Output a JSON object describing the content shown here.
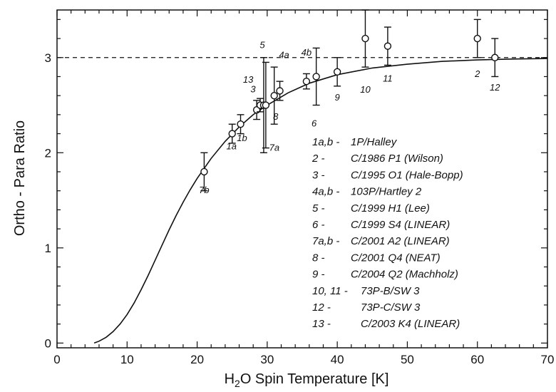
{
  "chart_data": {
    "type": "scatter",
    "title": "",
    "xlabel": {
      "prefix": "H",
      "sub": "2",
      "suffix": "O Spin Temperature [K]"
    },
    "ylabel": "Ortho - Para Ratio",
    "xlim": [
      0,
      70
    ],
    "ylim": [
      -0.05,
      3.5
    ],
    "xticks": [
      0,
      10,
      20,
      30,
      40,
      50,
      60,
      70
    ],
    "yticks": [
      0,
      1,
      2,
      3
    ],
    "reference_line": {
      "y": 3,
      "style": "dashed"
    },
    "model_curve": {
      "x": [
        5.3,
        6,
        7,
        8,
        9,
        10,
        11,
        12,
        13,
        14,
        15,
        16,
        17,
        18,
        19,
        20,
        22,
        24,
        26,
        28,
        30,
        33,
        36,
        40,
        45,
        50,
        55,
        60,
        65,
        70
      ],
      "y": [
        0.0,
        0.02,
        0.06,
        0.12,
        0.2,
        0.3,
        0.42,
        0.56,
        0.71,
        0.87,
        1.03,
        1.19,
        1.34,
        1.48,
        1.61,
        1.73,
        1.94,
        2.12,
        2.27,
        2.4,
        2.5,
        2.63,
        2.73,
        2.82,
        2.89,
        2.93,
        2.96,
        2.975,
        2.985,
        2.99
      ]
    },
    "points": [
      {
        "label": "1a",
        "x": 25.0,
        "y": 2.2,
        "err": 0.1,
        "lx": -1,
        "ly": 22
      },
      {
        "label": "1b",
        "x": 26.2,
        "y": 2.3,
        "err": 0.1,
        "lx": 2,
        "ly": 24
      },
      {
        "label": "7b",
        "x": 21.0,
        "y": 1.8,
        "err": 0.2,
        "lx": 0,
        "ly": 30
      },
      {
        "label": "13",
        "x": 28.5,
        "y": 2.45,
        "err": 0.1,
        "lx": -12,
        "ly": -38
      },
      {
        "label": "3",
        "x": 29.0,
        "y": 2.5,
        "err": 0.07,
        "lx": -10,
        "ly": -18
      },
      {
        "label": "5",
        "x": 29.5,
        "y": 2.5,
        "err": 0.5,
        "lx": -2,
        "ly": -80
      },
      {
        "label": "7a",
        "x": 29.8,
        "y": 2.5,
        "err": 0.45,
        "lx": 12,
        "ly": 64
      },
      {
        "label": "8",
        "x": 31.0,
        "y": 2.6,
        "err": 0.3,
        "lx": 2,
        "ly": 34
      },
      {
        "label": "4a",
        "x": 31.8,
        "y": 2.65,
        "err": 0.1,
        "lx": 6,
        "ly": -46
      },
      {
        "label": "4b",
        "x": 35.6,
        "y": 2.75,
        "err": 0.08,
        "lx": 0,
        "ly": -36
      },
      {
        "label": "6",
        "x": 37.0,
        "y": 2.8,
        "err": 0.3,
        "lx": -3,
        "ly": 70
      },
      {
        "label": "9",
        "x": 40.0,
        "y": 2.85,
        "err": 0.15,
        "lx": 0,
        "ly": 40
      },
      {
        "label": "10",
        "x": 44.0,
        "y": 3.2,
        "err": 0.3,
        "lx": 0,
        "ly": 76
      },
      {
        "label": "11",
        "x": 47.2,
        "y": 3.12,
        "err": 0.2,
        "lx": 0,
        "ly": 50
      },
      {
        "label": "2",
        "x": 60.0,
        "y": 3.2,
        "err": 0.2,
        "lx": 0,
        "ly": 54
      },
      {
        "label": "12",
        "x": 62.5,
        "y": 3.0,
        "err": 0.2,
        "lx": 0,
        "ly": 46
      }
    ],
    "legend": [
      {
        "key": "1a,b -",
        "name": "1P/Halley"
      },
      {
        "key": "2 -",
        "name": "C/1986 P1 (Wilson)"
      },
      {
        "key": "3 -",
        "name": "C/1995 O1 (Hale-Bopp)"
      },
      {
        "key": "4a,b -",
        "name": "103P/Hartley 2"
      },
      {
        "key": "5 -",
        "name": "C/1999 H1 (Lee)"
      },
      {
        "key": "6 -",
        "name": "C/1999 S4 (LINEAR)"
      },
      {
        "key": "7a,b -",
        "name": "C/2001 A2 (LINEAR)"
      },
      {
        "key": "8 -",
        "name": "C/2001 Q4 (NEAT)"
      },
      {
        "key": "9 -",
        "name": "C/2004 Q2 (Machholz)"
      },
      {
        "key": "10, 11 -",
        "name": "73P-B/SW 3"
      },
      {
        "key": "12 -",
        "name": "73P-C/SW 3"
      },
      {
        "key": "13 -",
        "name": "C/2003 K4 (LINEAR)"
      }
    ],
    "legend_placement": "lower-right",
    "grid": false
  }
}
